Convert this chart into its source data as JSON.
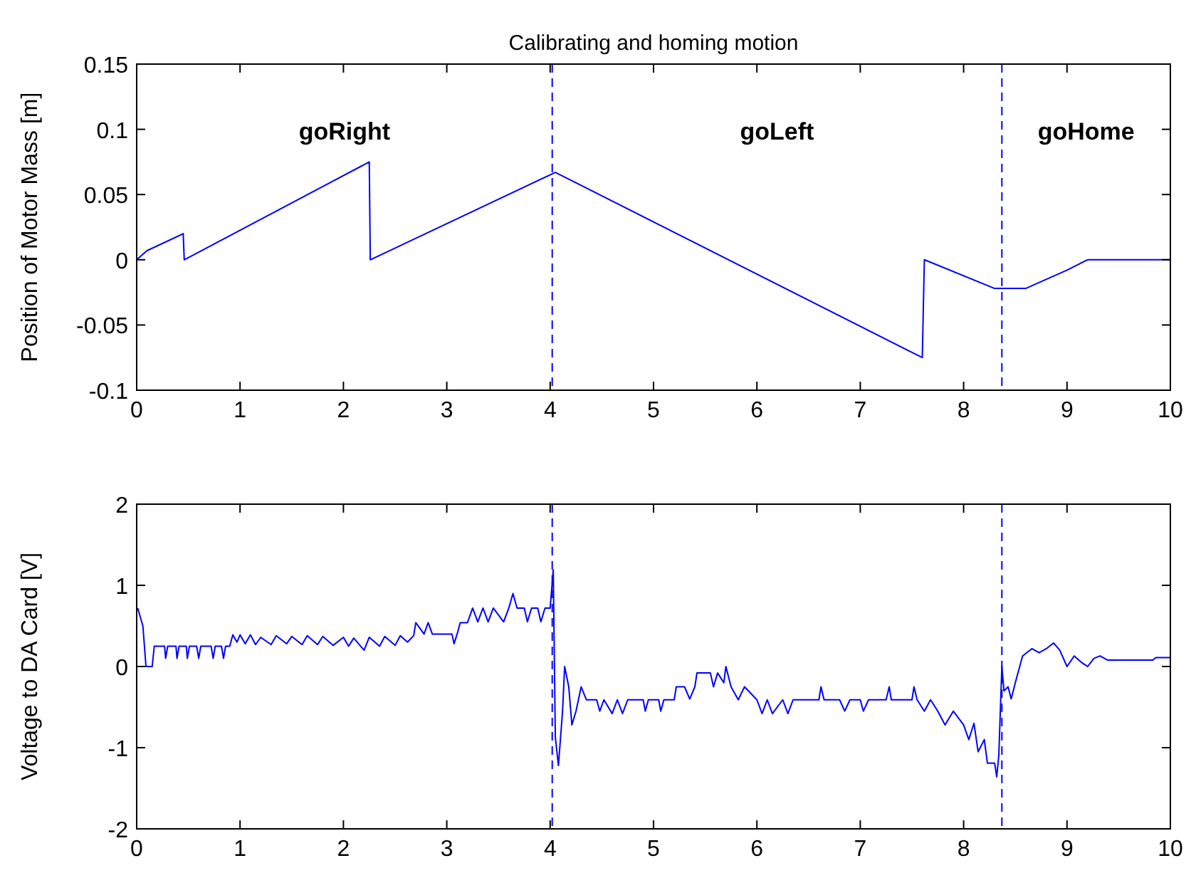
{
  "chart_data": [
    {
      "type": "line",
      "title": "Calibrating and homing motion",
      "ylabel": "Position of Motor Mass [m]",
      "xlim": [
        0,
        10
      ],
      "xticks": [
        0,
        1,
        2,
        3,
        4,
        5,
        6,
        7,
        8,
        9,
        10
      ],
      "ylim": [
        -0.1,
        0.15
      ],
      "yticks": [
        -0.1,
        -0.05,
        0,
        0.05,
        0.1,
        0.15
      ],
      "grid": false,
      "marker": "none",
      "line_style": "solid",
      "ref_lines": [
        {
          "axis": "x",
          "value": 4.02,
          "color": "#0000ff",
          "line_style": "dashed"
        },
        {
          "axis": "x",
          "value": 8.37,
          "color": "#0000ff",
          "line_style": "dashed"
        }
      ],
      "annotations": [
        "goRight",
        "goLeft",
        "goHome"
      ],
      "series": [
        {
          "color": "#0000ff",
          "x": [
            0,
            0.1,
            0.45,
            0.46,
            2.25,
            2.26,
            4.05,
            7.6,
            7.62,
            8.3,
            8.6,
            9.0,
            9.2,
            10
          ],
          "values": [
            0,
            0.007,
            0.02,
            0,
            0.075,
            0,
            0.067,
            -0.075,
            0,
            -0.022,
            -0.022,
            -0.008,
            0,
            0
          ]
        }
      ]
    },
    {
      "type": "line",
      "ylabel": "Voltage to DA Card [V]",
      "xlim": [
        0,
        10
      ],
      "xticks": [
        0,
        1,
        2,
        3,
        4,
        5,
        6,
        7,
        8,
        9,
        10
      ],
      "ylim": [
        -2,
        2
      ],
      "yticks": [
        -2,
        -1,
        0,
        1,
        2
      ],
      "grid": false,
      "marker": "none",
      "line_style": "solid",
      "ref_lines": [
        {
          "axis": "x",
          "value": 4.02,
          "color": "#0000ff",
          "line_style": "dashed"
        },
        {
          "axis": "x",
          "value": 8.37,
          "color": "#0000ff",
          "line_style": "dashed"
        }
      ],
      "series": [
        {
          "color": "#0000ff",
          "x": [
            0.01,
            0.06,
            0.09,
            0.15,
            0.17,
            0.27,
            0.28,
            0.3,
            0.38,
            0.39,
            0.41,
            0.48,
            0.49,
            0.51,
            0.58,
            0.6,
            0.62,
            0.72,
            0.74,
            0.76,
            0.82,
            0.84,
            0.86,
            0.9,
            0.93,
            0.97,
            1.0,
            1.05,
            1.1,
            1.15,
            1.2,
            1.3,
            1.35,
            1.45,
            1.5,
            1.6,
            1.65,
            1.75,
            1.8,
            1.9,
            2.0,
            2.05,
            2.1,
            2.2,
            2.25,
            2.35,
            2.4,
            2.5,
            2.55,
            2.62,
            2.68,
            2.7,
            2.78,
            2.82,
            2.86,
            3.05,
            3.07,
            3.1,
            3.13,
            3.2,
            3.25,
            3.3,
            3.35,
            3.4,
            3.45,
            3.55,
            3.6,
            3.64,
            3.68,
            3.75,
            3.78,
            3.82,
            3.88,
            3.91,
            3.95,
            4.0,
            4.03,
            4.05,
            4.08,
            4.12,
            4.14,
            4.18,
            4.21,
            4.25,
            4.3,
            4.35,
            4.45,
            4.48,
            4.52,
            4.6,
            4.65,
            4.7,
            4.75,
            4.9,
            4.92,
            4.95,
            5.05,
            5.07,
            5.1,
            5.2,
            5.22,
            5.3,
            5.35,
            5.4,
            5.42,
            5.55,
            5.58,
            5.62,
            5.68,
            5.7,
            5.75,
            5.82,
            5.88,
            6.0,
            6.05,
            6.1,
            6.15,
            6.25,
            6.3,
            6.35,
            6.6,
            6.62,
            6.65,
            6.8,
            6.85,
            6.9,
            7.0,
            7.03,
            7.08,
            7.25,
            7.28,
            7.3,
            7.5,
            7.52,
            7.55,
            7.62,
            7.68,
            7.75,
            7.82,
            7.9,
            8.0,
            8.05,
            8.1,
            8.14,
            8.2,
            8.23,
            8.3,
            8.32,
            8.34,
            8.37,
            8.39,
            8.43,
            8.46,
            8.5,
            8.57,
            8.66,
            8.73,
            8.8,
            8.87,
            8.93,
            9.0,
            9.07,
            9.14,
            9.2,
            9.26,
            9.32,
            9.39,
            9.83,
            9.86,
            10
          ],
          "values": [
            0.72,
            0.5,
            0,
            0,
            0.25,
            0.25,
            0.1,
            0.25,
            0.25,
            0.1,
            0.25,
            0.25,
            0.1,
            0.25,
            0.25,
            0.1,
            0.25,
            0.25,
            0.1,
            0.25,
            0.25,
            0.1,
            0.25,
            0.25,
            0.39,
            0.3,
            0.39,
            0.28,
            0.39,
            0.27,
            0.36,
            0.27,
            0.38,
            0.28,
            0.37,
            0.27,
            0.38,
            0.27,
            0.37,
            0.26,
            0.36,
            0.25,
            0.35,
            0.2,
            0.36,
            0.25,
            0.37,
            0.26,
            0.38,
            0.3,
            0.38,
            0.54,
            0.4,
            0.54,
            0.4,
            0.4,
            0.28,
            0.4,
            0.54,
            0.54,
            0.72,
            0.55,
            0.72,
            0.55,
            0.72,
            0.55,
            0.72,
            0.9,
            0.72,
            0.72,
            0.55,
            0.72,
            0.72,
            0.55,
            0.72,
            0.72,
            1.19,
            -0.87,
            -1.22,
            -0.55,
            0,
            -0.25,
            -0.72,
            -0.55,
            -0.25,
            -0.41,
            -0.41,
            -0.55,
            -0.41,
            -0.58,
            -0.41,
            -0.58,
            -0.41,
            -0.41,
            -0.55,
            -0.41,
            -0.41,
            -0.55,
            -0.41,
            -0.41,
            -0.25,
            -0.25,
            -0.4,
            -0.25,
            -0.08,
            -0.08,
            -0.25,
            -0.08,
            -0.2,
            0,
            -0.25,
            -0.41,
            -0.25,
            -0.41,
            -0.58,
            -0.41,
            -0.58,
            -0.41,
            -0.58,
            -0.41,
            -0.41,
            -0.25,
            -0.41,
            -0.41,
            -0.55,
            -0.41,
            -0.41,
            -0.55,
            -0.41,
            -0.41,
            -0.25,
            -0.41,
            -0.41,
            -0.25,
            -0.41,
            -0.55,
            -0.41,
            -0.55,
            -0.72,
            -0.55,
            -0.72,
            -0.9,
            -0.7,
            -1.05,
            -0.9,
            -1.19,
            -1.19,
            -1.36,
            -1.1,
            0,
            -0.3,
            -0.25,
            -0.4,
            -0.2,
            0.13,
            0.22,
            0.17,
            0.22,
            0.29,
            0.2,
            0,
            0.13,
            0.05,
            0,
            0.1,
            0.13,
            0.08,
            0.08,
            0.11,
            0.11
          ]
        }
      ]
    }
  ]
}
